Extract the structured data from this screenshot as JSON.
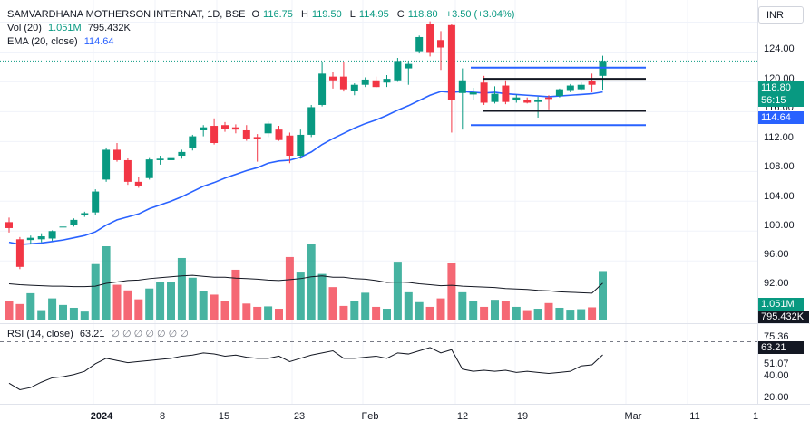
{
  "legend": {
    "symbol": "SAMVARDHANA MOTHERSON INTERNAT, 1D, BSE",
    "open_label": "O",
    "open": "116.75",
    "high_label": "H",
    "high": "119.50",
    "low_label": "L",
    "low": "114.95",
    "close_label": "C",
    "close": "118.80",
    "change": "+3.50 (+3.04%)",
    "volume_label": "Vol (20)",
    "volume_value": "1.051M",
    "volume_ma": "795.432K",
    "ema_label": "EMA (20, close)",
    "ema_value": "114.64",
    "rsi_label": "RSI (14, close)",
    "rsi_value": "63.21",
    "rsi_placeholders": "∅ ∅ ∅ ∅ ∅ ∅ ∅"
  },
  "currency": "INR",
  "price_axis": [
    "124.00",
    "120.00",
    "116.00",
    "112.00",
    "108.00",
    "104.00",
    "100.00",
    "96.00",
    "92.00"
  ],
  "rsi_axis": [
    "75.36",
    "51.07",
    "40.00",
    "20.00"
  ],
  "price_tags": {
    "last_price": "118.80",
    "countdown": "56:15",
    "ema": "114.64",
    "volume": "1.051M",
    "volume_ma": "795.432K",
    "rsi": "63.21"
  },
  "time_axis": [
    {
      "label": "2024",
      "bold": true
    },
    {
      "label": "8",
      "bold": false
    },
    {
      "label": "15",
      "bold": false
    },
    {
      "label": "23",
      "bold": false
    },
    {
      "label": "Feb",
      "bold": false
    },
    {
      "label": "12",
      "bold": false
    },
    {
      "label": "19",
      "bold": false
    },
    {
      "label": "Mar",
      "bold": false
    },
    {
      "label": "11",
      "bold": false
    },
    {
      "label": "1",
      "bold": false
    }
  ],
  "colors": {
    "up": "#089981",
    "down": "#f23645",
    "ema": "#2962ff",
    "grid": "#f0f3fa"
  },
  "chart_data": {
    "type": "candlestick",
    "candles": [
      {
        "o": 97.2,
        "h": 97.8,
        "l": 95.8,
        "c": 96.4,
        "v": 0.42
      },
      {
        "o": 94.9,
        "h": 95.2,
        "l": 90.9,
        "c": 91.2,
        "v": 0.35
      },
      {
        "o": 94.8,
        "h": 95.4,
        "l": 94.2,
        "c": 95.1,
        "v": 0.58
      },
      {
        "o": 94.9,
        "h": 95.7,
        "l": 94.5,
        "c": 95.3,
        "v": 0.22
      },
      {
        "o": 95.0,
        "h": 96.1,
        "l": 94.7,
        "c": 96.0,
        "v": 0.47
      },
      {
        "o": 96.5,
        "h": 97.1,
        "l": 96.1,
        "c": 96.6,
        "v": 0.33
      },
      {
        "o": 96.8,
        "h": 97.7,
        "l": 96.6,
        "c": 97.5,
        "v": 0.27
      },
      {
        "o": 98.2,
        "h": 98.6,
        "l": 97.9,
        "c": 98.4,
        "v": 0.19
      },
      {
        "o": 98.5,
        "h": 101.6,
        "l": 98.2,
        "c": 101.3,
        "v": 1.2
      },
      {
        "o": 102.9,
        "h": 107.2,
        "l": 102.6,
        "c": 106.9,
        "v": 1.58
      },
      {
        "o": 106.9,
        "h": 107.8,
        "l": 105.3,
        "c": 105.5,
        "v": 0.76
      },
      {
        "o": 105.5,
        "h": 105.8,
        "l": 102.2,
        "c": 102.6,
        "v": 0.64
      },
      {
        "o": 102.6,
        "h": 103.2,
        "l": 101.8,
        "c": 102.1,
        "v": 0.45
      },
      {
        "o": 103.1,
        "h": 105.9,
        "l": 102.9,
        "c": 105.6,
        "v": 0.68
      },
      {
        "o": 105.5,
        "h": 106.1,
        "l": 104.9,
        "c": 105.7,
        "v": 0.81
      },
      {
        "o": 105.5,
        "h": 106.4,
        "l": 105.2,
        "c": 105.9,
        "v": 0.82
      },
      {
        "o": 106.1,
        "h": 106.9,
        "l": 105.7,
        "c": 106.6,
        "v": 1.33
      },
      {
        "o": 107.1,
        "h": 108.9,
        "l": 106.8,
        "c": 108.7,
        "v": 0.91
      },
      {
        "o": 109.5,
        "h": 110.2,
        "l": 108.7,
        "c": 109.9,
        "v": 0.62
      },
      {
        "o": 110.1,
        "h": 111.1,
        "l": 107.6,
        "c": 107.8,
        "v": 0.55
      },
      {
        "o": 110.2,
        "h": 110.6,
        "l": 109.3,
        "c": 109.7,
        "v": 0.41
      },
      {
        "o": 109.9,
        "h": 110.3,
        "l": 109.1,
        "c": 109.6,
        "v": 1.08
      },
      {
        "o": 109.5,
        "h": 110.2,
        "l": 108.1,
        "c": 108.4,
        "v": 0.36
      },
      {
        "o": 108.6,
        "h": 109.0,
        "l": 105.3,
        "c": 108.3,
        "v": 0.29
      },
      {
        "o": 109.1,
        "h": 110.7,
        "l": 108.6,
        "c": 110.4,
        "v": 0.3
      },
      {
        "o": 109.6,
        "h": 110.1,
        "l": 108.1,
        "c": 108.2,
        "v": 0.25
      },
      {
        "o": 108.8,
        "h": 109.2,
        "l": 105.1,
        "c": 106.1,
        "v": 1.35
      },
      {
        "o": 106.1,
        "h": 109.6,
        "l": 105.7,
        "c": 108.9,
        "v": 1.02
      },
      {
        "o": 108.9,
        "h": 112.9,
        "l": 108.6,
        "c": 112.6,
        "v": 1.62
      },
      {
        "o": 112.9,
        "h": 118.6,
        "l": 112.7,
        "c": 117.1,
        "v": 0.99
      },
      {
        "o": 116.7,
        "h": 117.3,
        "l": 115.1,
        "c": 116.2,
        "v": 0.71
      },
      {
        "o": 116.7,
        "h": 118.6,
        "l": 114.7,
        "c": 115.0,
        "v": 0.31
      },
      {
        "o": 114.8,
        "h": 115.8,
        "l": 114.2,
        "c": 115.6,
        "v": 0.41
      },
      {
        "o": 115.6,
        "h": 116.6,
        "l": 115.3,
        "c": 116.3,
        "v": 0.59
      },
      {
        "o": 116.2,
        "h": 116.7,
        "l": 115.2,
        "c": 115.3,
        "v": 0.29
      },
      {
        "o": 115.9,
        "h": 116.9,
        "l": 115.3,
        "c": 116.4,
        "v": 0.25
      },
      {
        "o": 116.2,
        "h": 119.2,
        "l": 116.0,
        "c": 118.8,
        "v": 1.25
      },
      {
        "o": 117.8,
        "h": 118.8,
        "l": 115.6,
        "c": 118.4,
        "v": 0.6
      },
      {
        "o": 120.1,
        "h": 122.2,
        "l": 119.8,
        "c": 122.0,
        "v": 0.39
      },
      {
        "o": 123.8,
        "h": 124.1,
        "l": 119.4,
        "c": 120.0,
        "v": 0.29
      },
      {
        "o": 121.6,
        "h": 122.8,
        "l": 117.6,
        "c": 120.6,
        "v": 0.47
      },
      {
        "o": 123.6,
        "h": 123.7,
        "l": 109.2,
        "c": 113.6,
        "v": 1.22
      },
      {
        "o": 114.5,
        "h": 117.8,
        "l": 109.6,
        "c": 116.2,
        "v": 0.6
      },
      {
        "o": 114.3,
        "h": 115.2,
        "l": 113.6,
        "c": 114.6,
        "v": 0.42
      },
      {
        "o": 115.9,
        "h": 116.8,
        "l": 112.9,
        "c": 113.2,
        "v": 0.29
      },
      {
        "o": 113.3,
        "h": 115.4,
        "l": 113.1,
        "c": 114.4,
        "v": 0.44
      },
      {
        "o": 115.5,
        "h": 116.2,
        "l": 113.0,
        "c": 113.3,
        "v": 0.41
      },
      {
        "o": 113.5,
        "h": 114.3,
        "l": 113.2,
        "c": 113.9,
        "v": 0.29
      },
      {
        "o": 113.6,
        "h": 113.9,
        "l": 113.1,
        "c": 113.2,
        "v": 0.22
      },
      {
        "o": 113.3,
        "h": 114.0,
        "l": 111.2,
        "c": 113.6,
        "v": 0.25
      },
      {
        "o": 113.9,
        "h": 114.2,
        "l": 112.3,
        "c": 113.7,
        "v": 0.37
      },
      {
        "o": 114.1,
        "h": 115.1,
        "l": 113.9,
        "c": 115.0,
        "v": 0.27
      },
      {
        "o": 114.9,
        "h": 115.7,
        "l": 114.6,
        "c": 115.5,
        "v": 0.23
      },
      {
        "o": 115.0,
        "h": 115.9,
        "l": 114.9,
        "c": 115.6,
        "v": 0.24
      },
      {
        "o": 116.1,
        "h": 117.1,
        "l": 114.6,
        "c": 115.6,
        "v": 0.28
      },
      {
        "o": 116.8,
        "h": 119.5,
        "l": 114.95,
        "c": 118.8,
        "v": 1.051
      }
    ],
    "ema": [
      94.5,
      94.2,
      94.3,
      94.4,
      94.6,
      94.8,
      95.1,
      95.4,
      95.9,
      96.8,
      97.5,
      97.9,
      98.3,
      99.0,
      99.5,
      100.0,
      100.6,
      101.3,
      102.0,
      102.5,
      103.1,
      103.6,
      104.1,
      104.5,
      105.1,
      105.4,
      105.5,
      105.9,
      106.6,
      107.6,
      108.4,
      109.1,
      109.8,
      110.4,
      110.9,
      111.5,
      112.2,
      112.8,
      113.5,
      114.2,
      114.7,
      114.6,
      114.7,
      114.6,
      114.5,
      114.6,
      114.4,
      114.3,
      114.2,
      114.1,
      114.0,
      114.1,
      114.2,
      114.3,
      114.4,
      114.64
    ],
    "rsi": [
      37,
      31,
      33,
      38,
      42,
      43,
      45,
      48,
      55,
      60,
      58,
      56,
      57,
      58,
      59,
      60,
      62,
      63,
      65,
      64,
      62,
      63,
      61,
      60,
      60,
      62,
      57,
      60,
      63,
      65,
      67,
      60,
      60,
      61,
      62,
      60,
      65,
      64,
      67,
      70,
      65,
      68,
      50,
      48,
      49,
      48,
      49,
      47,
      48,
      47,
      46,
      47,
      48,
      53,
      54,
      63.21
    ],
    "volume_ma": [
      0.78,
      0.76,
      0.75,
      0.74,
      0.73,
      0.73,
      0.72,
      0.72,
      0.73,
      0.79,
      0.82,
      0.85,
      0.86,
      0.89,
      0.91,
      0.93,
      0.95,
      0.96,
      0.94,
      0.92,
      0.92,
      0.9,
      0.89,
      0.88,
      0.86,
      0.85,
      0.87,
      0.89,
      0.93,
      0.95,
      0.92,
      0.92,
      0.89,
      0.88,
      0.85,
      0.81,
      0.82,
      0.81,
      0.78,
      0.76,
      0.74,
      0.75,
      0.73,
      0.72,
      0.71,
      0.7,
      0.68,
      0.67,
      0.66,
      0.64,
      0.63,
      0.61,
      0.6,
      0.59,
      0.58,
      0.795
    ],
    "drawings": [
      {
        "type": "hline",
        "color": "#2962ff",
        "y": 117.9
      },
      {
        "type": "hline",
        "color": "#131722",
        "y": 116.4
      },
      {
        "type": "hline",
        "color": "#131722",
        "y": 112.1
      },
      {
        "type": "hline",
        "color": "#2962ff",
        "y": 110.2
      }
    ],
    "price_range": [
      89.6,
      126.0
    ],
    "rsi_range": [
      18,
      90
    ]
  }
}
